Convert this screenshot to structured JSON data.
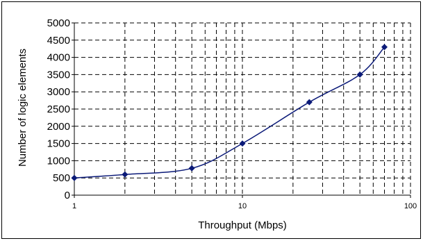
{
  "chart_data": {
    "type": "line",
    "title": "",
    "xlabel": "Throughput (Mbps)",
    "ylabel": "Number of logic elements",
    "x_scale": "log",
    "xlim": [
      1,
      100
    ],
    "ylim": [
      0,
      5000
    ],
    "x_ticks": [
      "1",
      "10",
      "100"
    ],
    "y_ticks": [
      "0",
      "500",
      "1000",
      "1500",
      "2000",
      "2500",
      "3000",
      "3500",
      "4000",
      "4500",
      "5000"
    ],
    "grid": true,
    "legend": "none",
    "series": [
      {
        "x": [
          1,
          2,
          5,
          10,
          25,
          50,
          70
        ],
        "y": [
          500,
          600,
          780,
          1500,
          2700,
          3500,
          4300
        ],
        "color": "#0b1a78"
      }
    ]
  }
}
